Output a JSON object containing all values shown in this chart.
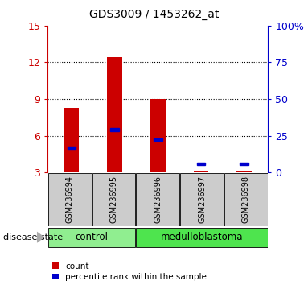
{
  "title": "GDS3009 / 1453262_at",
  "samples": [
    "GSM236994",
    "GSM236995",
    "GSM236996",
    "GSM236997",
    "GSM236998"
  ],
  "red_values": [
    8.3,
    12.4,
    9.0,
    3.15,
    3.15
  ],
  "blue_values_left": [
    5.0,
    6.5,
    5.7,
    3.7,
    3.7
  ],
  "ylim_left": [
    3,
    15
  ],
  "ylim_right": [
    0,
    100
  ],
  "yticks_left": [
    3,
    6,
    9,
    12,
    15
  ],
  "ytick_labels_left": [
    "3",
    "6",
    "9",
    "12",
    "15"
  ],
  "yticks_right": [
    0,
    25,
    50,
    75,
    100
  ],
  "ytick_labels_right": [
    "0",
    "25",
    "50",
    "75",
    "100%"
  ],
  "groups": [
    {
      "label": "control",
      "indices": [
        0,
        1
      ],
      "color": "#90EE90"
    },
    {
      "label": "medulloblastoma",
      "indices": [
        2,
        3,
        4
      ],
      "color": "#4EE44E"
    }
  ],
  "bar_color": "#CC0000",
  "square_color": "#0000CC",
  "bar_width": 0.35,
  "background_color": "#ffffff",
  "label_area_color": "#cccccc",
  "disease_state_label": "disease state",
  "legend_count": "count",
  "legend_percentile": "percentile rank within the sample"
}
